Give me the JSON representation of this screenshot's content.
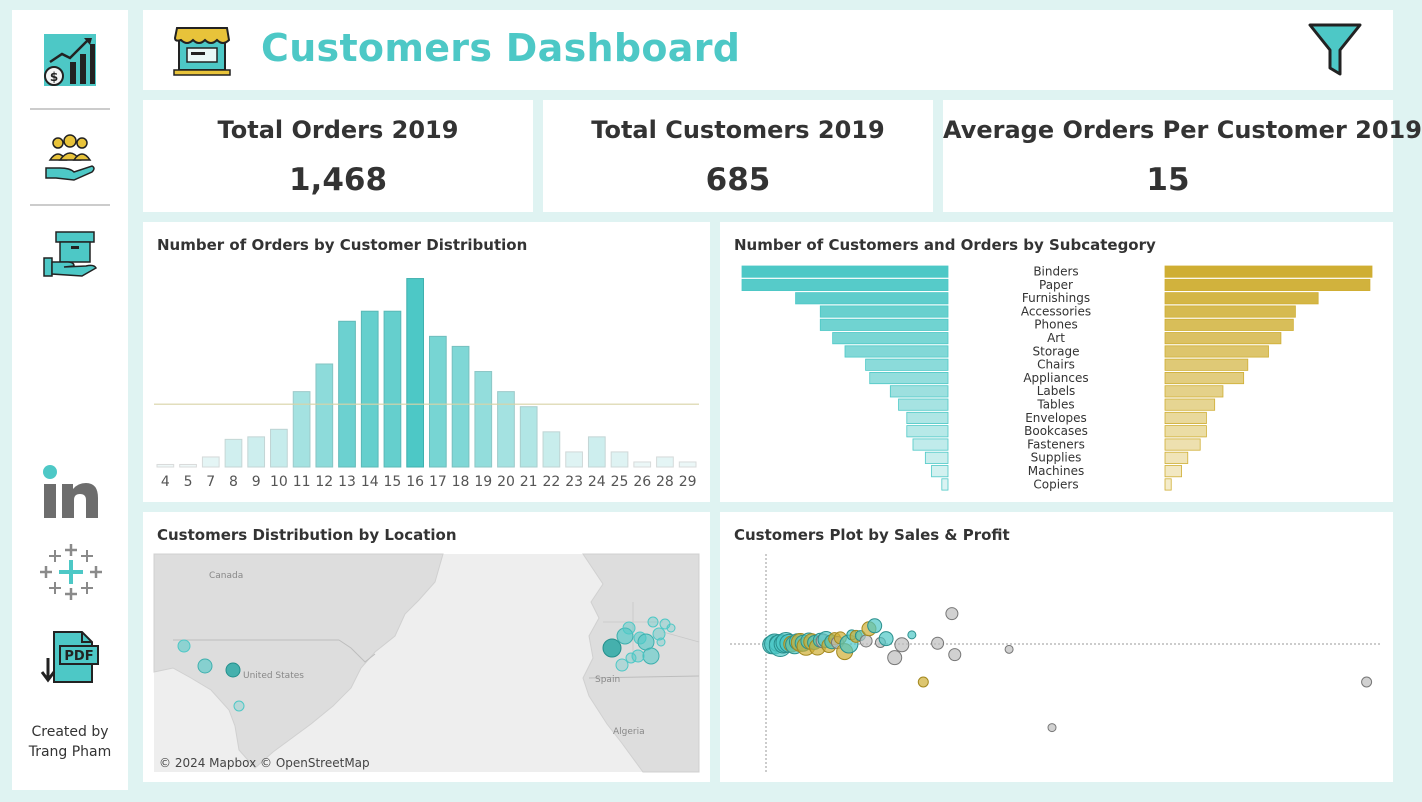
{
  "header": {
    "title": "Customers Dashboard"
  },
  "sidebar": {
    "items": [
      {
        "name": "sales-dashboard-icon"
      },
      {
        "name": "customers-dashboard-icon"
      },
      {
        "name": "products-dashboard-icon"
      },
      {
        "name": "linkedin-icon"
      },
      {
        "name": "tableau-icon"
      },
      {
        "name": "pdf-download-icon"
      }
    ],
    "credit_line1": "Created by",
    "credit_line2": "Trang Pham"
  },
  "kpis": [
    {
      "label": "Total Orders 2019",
      "value": "1,468"
    },
    {
      "label": "Total Customers 2019",
      "value": "685"
    },
    {
      "label": "Average Orders Per Customer 2019",
      "value": "15"
    }
  ],
  "colors": {
    "accent": "#4dc8c6",
    "gold": "#cfae33",
    "grey": "#bcbcbc",
    "background": "#dff3f2"
  },
  "chart_data": [
    {
      "type": "bar",
      "title": "Number of Orders by Customer Distribution",
      "categories": [
        "4",
        "5",
        "7",
        "8",
        "9",
        "10",
        "11",
        "12",
        "13",
        "14",
        "15",
        "16",
        "17",
        "18",
        "19",
        "20",
        "21",
        "22",
        "23",
        "24",
        "25",
        "26",
        "28",
        "29"
      ],
      "values": [
        1,
        1,
        4,
        11,
        12,
        15,
        30,
        41,
        58,
        62,
        62,
        75,
        52,
        48,
        38,
        30,
        24,
        14,
        6,
        12,
        6,
        2,
        4,
        2
      ],
      "reference_line": 25,
      "ylim": [
        0,
        80
      ],
      "grid": false
    },
    {
      "type": "bar",
      "title": "Number of Customers and Orders by Subcategory",
      "categories": [
        "Binders",
        "Paper",
        "Furnishings",
        "Accessories",
        "Phones",
        "Art",
        "Storage",
        "Chairs",
        "Appliances",
        "Labels",
        "Tables",
        "Envelopes",
        "Bookcases",
        "Fasteners",
        "Supplies",
        "Machines",
        "Copiers"
      ],
      "series": [
        {
          "values": [
            100,
            100,
            74,
            62,
            62,
            56,
            50,
            40,
            38,
            28,
            24,
            20,
            20,
            17,
            11,
            8,
            3
          ]
        },
        {
          "values": [
            100,
            99,
            74,
            63,
            62,
            56,
            50,
            40,
            38,
            28,
            24,
            20,
            20,
            17,
            11,
            8,
            3
          ]
        }
      ],
      "grid": false
    },
    {
      "type": "scatter",
      "title": "Customers Plot by Sales & Profit",
      "points": [
        {
          "x": 4,
          "y": -1,
          "s": 9,
          "c": "teal"
        },
        {
          "x": 6,
          "y": 0,
          "s": 10,
          "c": "teal"
        },
        {
          "x": 8,
          "y": 1,
          "s": 8,
          "c": "teal"
        },
        {
          "x": 10,
          "y": -2,
          "s": 11,
          "c": "teal"
        },
        {
          "x": 12,
          "y": 0,
          "s": 9,
          "c": "teal"
        },
        {
          "x": 14,
          "y": 2,
          "s": 10,
          "c": "teal"
        },
        {
          "x": 16,
          "y": 1,
          "s": 9,
          "c": "teal"
        },
        {
          "x": 18,
          "y": 0,
          "s": 8,
          "c": "gold"
        },
        {
          "x": 20,
          "y": -1,
          "s": 9,
          "c": "teal"
        },
        {
          "x": 22,
          "y": 3,
          "s": 8,
          "c": "teal"
        },
        {
          "x": 24,
          "y": 2,
          "s": 9,
          "c": "gold"
        },
        {
          "x": 26,
          "y": 1,
          "s": 8,
          "c": "teal"
        },
        {
          "x": 28,
          "y": -3,
          "s": 9,
          "c": "gold"
        },
        {
          "x": 30,
          "y": 4,
          "s": 8,
          "c": "teal"
        },
        {
          "x": 32,
          "y": 3,
          "s": 8,
          "c": "gold"
        },
        {
          "x": 34,
          "y": 2,
          "s": 7,
          "c": "teal"
        },
        {
          "x": 36,
          "y": -4,
          "s": 8,
          "c": "gold"
        },
        {
          "x": 38,
          "y": 5,
          "s": 7,
          "c": "teal"
        },
        {
          "x": 40,
          "y": 4,
          "s": 7,
          "c": "grey"
        },
        {
          "x": 42,
          "y": 6,
          "s": 8,
          "c": "teal"
        },
        {
          "x": 44,
          "y": -2,
          "s": 7,
          "c": "gold"
        },
        {
          "x": 46,
          "y": 3,
          "s": 7,
          "c": "teal"
        },
        {
          "x": 48,
          "y": 7,
          "s": 6,
          "c": "gold"
        },
        {
          "x": 50,
          "y": 2,
          "s": 6,
          "c": "grey"
        },
        {
          "x": 52,
          "y": 8,
          "s": 6,
          "c": "gold"
        },
        {
          "x": 55,
          "y": -10,
          "s": 8,
          "c": "gold"
        },
        {
          "x": 58,
          "y": 0,
          "s": 9,
          "c": "teal"
        },
        {
          "x": 60,
          "y": 12,
          "s": 5,
          "c": "teal"
        },
        {
          "x": 63,
          "y": 10,
          "s": 6,
          "c": "gold"
        },
        {
          "x": 66,
          "y": 11,
          "s": 5,
          "c": "teal"
        },
        {
          "x": 70,
          "y": 4,
          "s": 6,
          "c": "grey"
        },
        {
          "x": 72,
          "y": 20,
          "s": 7,
          "c": "gold"
        },
        {
          "x": 76,
          "y": 24,
          "s": 7,
          "c": "teal"
        },
        {
          "x": 80,
          "y": 2,
          "s": 5,
          "c": "grey"
        },
        {
          "x": 84,
          "y": 7,
          "s": 7,
          "c": "teal"
        },
        {
          "x": 90,
          "y": -18,
          "s": 7,
          "c": "grey"
        },
        {
          "x": 95,
          "y": -1,
          "s": 7,
          "c": "grey"
        },
        {
          "x": 102,
          "y": 12,
          "s": 4,
          "c": "teal"
        },
        {
          "x": 110,
          "y": -50,
          "s": 5,
          "c": "gold"
        },
        {
          "x": 120,
          "y": 1,
          "s": 6,
          "c": "grey"
        },
        {
          "x": 130,
          "y": 40,
          "s": 6,
          "c": "grey"
        },
        {
          "x": 132,
          "y": -14,
          "s": 6,
          "c": "grey"
        },
        {
          "x": 170,
          "y": -7,
          "s": 4,
          "c": "grey"
        },
        {
          "x": 200,
          "y": -110,
          "s": 4,
          "c": "grey"
        },
        {
          "x": 420,
          "y": -50,
          "s": 5,
          "c": "grey"
        }
      ]
    }
  ],
  "map": {
    "title": "Customers Distribution by Location",
    "labels": [
      "Canada",
      "United States",
      "Spain",
      "Algeria"
    ],
    "copyright": "© 2024 Mapbox © OpenStreetMap"
  }
}
